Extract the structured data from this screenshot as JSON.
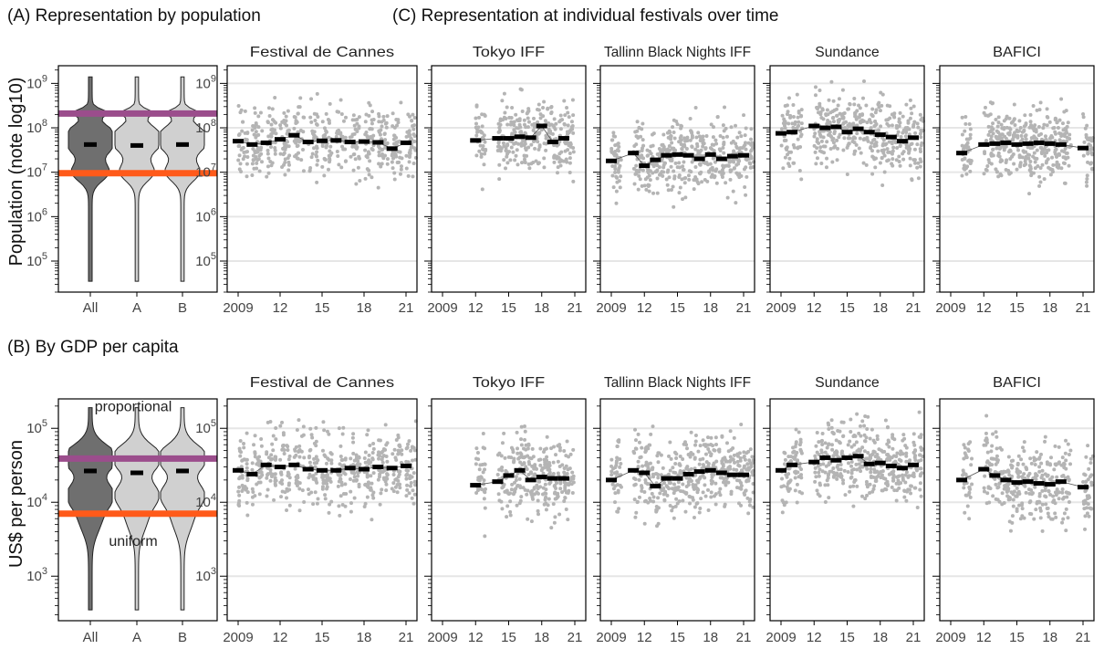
{
  "headings": {
    "a": "(A) Representation by population",
    "b": "(B) By GDP per capita",
    "c": "(C) Representation at individual festivals over time"
  },
  "colors": {
    "proportional": "#9b4d8c",
    "uniform": "#ff5a1a",
    "proportional_text": "#7d1d7f",
    "uniform_text": "#f04a10",
    "violin_all": "#6f6f6f",
    "violin_ab": "#d0d0d0",
    "festival_points": "#b4b4b4",
    "median_mark": "#000000",
    "gridline": "#e6e6e6"
  },
  "chart_data": [
    {
      "id": "A",
      "type": "violin",
      "ylabel": "Population (note log10)",
      "yscale": "log",
      "ylim": [
        20000,
        2500000000
      ],
      "y_ticks": [
        100000,
        1000000,
        10000000,
        100000000,
        1000000000
      ],
      "categories": [
        "All",
        "A",
        "B"
      ],
      "medians": [
        42000000,
        40000000,
        42000000
      ],
      "ranges": [
        [
          35000,
          1400000000
        ],
        [
          35000,
          1400000000
        ],
        [
          35000,
          1400000000
        ]
      ],
      "reference_lines": [
        {
          "name": "proportional",
          "value": 210000000
        },
        {
          "name": "uniform",
          "value": 9500000
        }
      ]
    },
    {
      "id": "B",
      "type": "violin",
      "ylabel": "US$ per person",
      "yscale": "log",
      "ylim": [
        250,
        250000
      ],
      "y_ticks": [
        1000,
        10000,
        100000
      ],
      "categories": [
        "All",
        "A",
        "B"
      ],
      "medians": [
        26500,
        25000,
        26500
      ],
      "ranges": [
        [
          350,
          190000
        ],
        [
          350,
          190000
        ],
        [
          350,
          190000
        ]
      ],
      "reference_lines": [
        {
          "name": "proportional",
          "value": 39000
        },
        {
          "name": "uniform",
          "value": 7000
        }
      ],
      "annotations": [
        "proportional",
        "uniform"
      ]
    },
    {
      "id": "C-population",
      "type": "scatter",
      "yscale": "log",
      "ylim": [
        20000,
        2500000000
      ],
      "y_ticks": [
        100000,
        1000000,
        10000000,
        100000000,
        1000000000
      ],
      "x_range": [
        2009,
        2021
      ],
      "x_ticks": [
        {
          "value": 2009,
          "label": "2009"
        },
        {
          "value": 2012,
          "label": "12"
        },
        {
          "value": 2015,
          "label": "15"
        },
        {
          "value": 2018,
          "label": "18"
        },
        {
          "value": 2021,
          "label": "21"
        }
      ],
      "panels": [
        {
          "title": "Festival de Cannes",
          "years": [
            2009,
            2010,
            2011,
            2012,
            2013,
            2014,
            2015,
            2016,
            2017,
            2018,
            2019,
            2020,
            2021
          ],
          "medians": [
            50000000,
            42000000,
            46000000,
            55000000,
            68000000,
            48000000,
            51000000,
            52000000,
            48000000,
            49000000,
            47000000,
            34000000,
            46000000
          ]
        },
        {
          "title": "Tokyo IFF",
          "years": [
            2012,
            2014,
            2015,
            2016,
            2017,
            2018,
            2019,
            2020
          ],
          "medians": [
            52000000,
            58000000,
            58000000,
            63000000,
            60000000,
            110000000,
            48000000,
            58000000
          ]
        },
        {
          "title": "Tallinn Black Nights IFF",
          "years": [
            2009,
            2011,
            2012,
            2013,
            2014,
            2015,
            2016,
            2017,
            2018,
            2019,
            2020,
            2021
          ],
          "medians": [
            18000000,
            27000000,
            14000000,
            19000000,
            24000000,
            25000000,
            24000000,
            20000000,
            25000000,
            20000000,
            23000000,
            24000000
          ]
        },
        {
          "title": "Sundance",
          "years": [
            2009,
            2010,
            2012,
            2013,
            2014,
            2015,
            2016,
            2017,
            2018,
            2019,
            2020,
            2021
          ],
          "medians": [
            75000000,
            80000000,
            110000000,
            100000000,
            105000000,
            80000000,
            95000000,
            80000000,
            70000000,
            62000000,
            50000000,
            60000000
          ]
        },
        {
          "title": "BAFICI",
          "years": [
            2010,
            2012,
            2013,
            2014,
            2015,
            2016,
            2017,
            2018,
            2019,
            2021
          ],
          "medians": [
            27000000,
            42000000,
            44000000,
            46000000,
            42000000,
            44000000,
            46000000,
            44000000,
            42000000,
            35000000
          ]
        }
      ]
    },
    {
      "id": "C-gdp",
      "type": "scatter",
      "yscale": "log",
      "ylim": [
        250,
        250000
      ],
      "y_ticks": [
        1000,
        10000,
        100000
      ],
      "x_range": [
        2009,
        2021
      ],
      "x_ticks": [
        {
          "value": 2009,
          "label": "2009"
        },
        {
          "value": 2012,
          "label": "12"
        },
        {
          "value": 2015,
          "label": "15"
        },
        {
          "value": 2018,
          "label": "18"
        },
        {
          "value": 2021,
          "label": "21"
        }
      ],
      "panels": [
        {
          "title": "Festival de Cannes",
          "years": [
            2009,
            2010,
            2011,
            2012,
            2013,
            2014,
            2015,
            2016,
            2017,
            2018,
            2019,
            2020,
            2021
          ],
          "medians": [
            27000,
            24000,
            32000,
            30000,
            32000,
            28000,
            27000,
            27000,
            29000,
            28000,
            30000,
            29000,
            31000
          ]
        },
        {
          "title": "Tokyo IFF",
          "years": [
            2012,
            2014,
            2015,
            2016,
            2017,
            2018,
            2019,
            2020
          ],
          "medians": [
            17000,
            19000,
            23000,
            27000,
            20000,
            22000,
            21000,
            21000
          ]
        },
        {
          "title": "Tallinn Black Nights IFF",
          "years": [
            2009,
            2011,
            2012,
            2013,
            2014,
            2015,
            2016,
            2017,
            2018,
            2019,
            2020,
            2021
          ],
          "medians": [
            20000,
            27000,
            25000,
            16500,
            21000,
            21000,
            24000,
            26000,
            27000,
            25000,
            23500,
            23500
          ]
        },
        {
          "title": "Sundance",
          "years": [
            2009,
            2010,
            2012,
            2013,
            2014,
            2015,
            2016,
            2017,
            2018,
            2019,
            2020,
            2021
          ],
          "medians": [
            27000,
            32000,
            35000,
            40000,
            37000,
            40000,
            42000,
            33000,
            34000,
            31000,
            29000,
            32000
          ]
        },
        {
          "title": "BAFICI",
          "years": [
            2010,
            2012,
            2013,
            2014,
            2015,
            2016,
            2017,
            2018,
            2019,
            2021
          ],
          "medians": [
            20000,
            28000,
            23000,
            20000,
            18500,
            19000,
            18000,
            17500,
            19000,
            16000
          ]
        }
      ]
    }
  ]
}
